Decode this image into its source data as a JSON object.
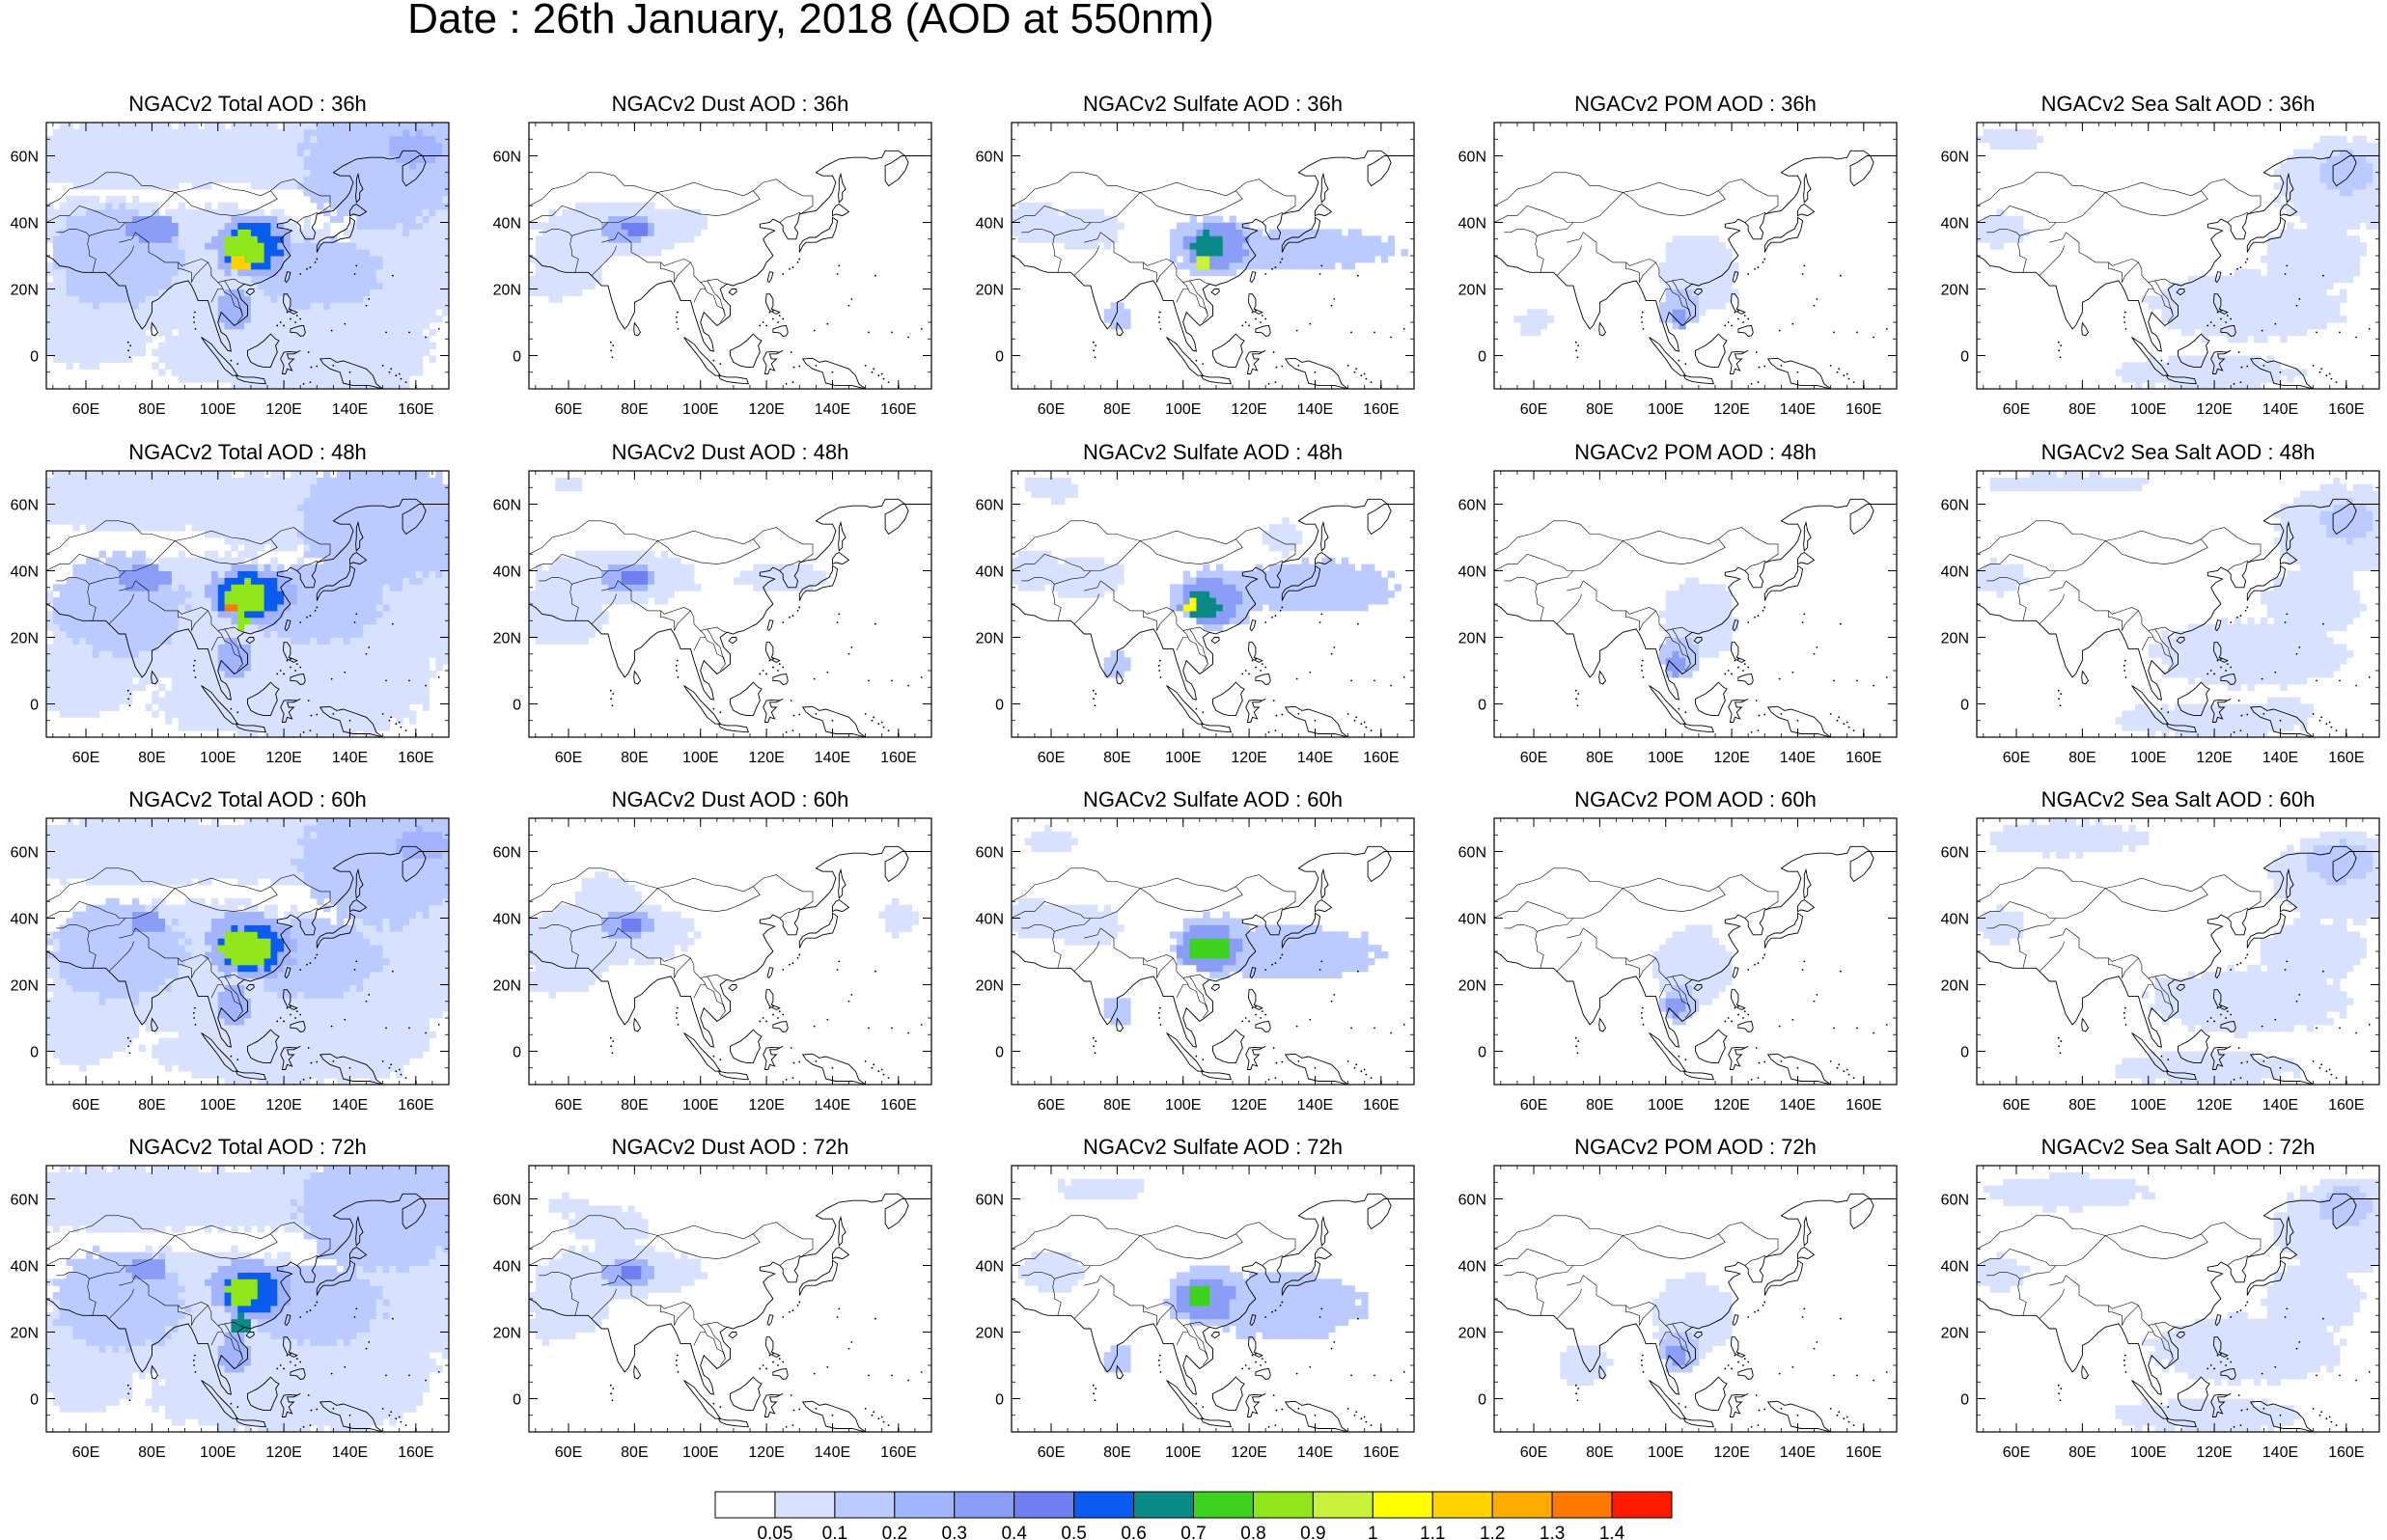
{
  "figure": {
    "title": "Date : 26th January, 2018 (AOD at 550nm)"
  },
  "map": {
    "lon_range": [
      48,
      170
    ],
    "lat_range": [
      -10,
      70
    ],
    "xticks": [
      {
        "lon": 60,
        "label": "60E"
      },
      {
        "lon": 80,
        "label": "80E"
      },
      {
        "lon": 100,
        "label": "100E"
      },
      {
        "lon": 120,
        "label": "120E"
      },
      {
        "lon": 140,
        "label": "140E"
      },
      {
        "lon": 160,
        "label": "160E"
      }
    ],
    "yticks": [
      {
        "lat": 60,
        "label": "60N"
      },
      {
        "lat": 40,
        "label": "40N"
      },
      {
        "lat": 20,
        "label": "20N"
      },
      {
        "lat": 0,
        "label": "0"
      }
    ]
  },
  "columns": [
    {
      "species": "total",
      "titles": [
        "NGACv2 Total AOD : 36h",
        "NGACv2 Total AOD : 48h",
        "NGACv2 Total AOD : 60h",
        "NGACv2 Total AOD : 72h"
      ]
    },
    {
      "species": "dust",
      "titles": [
        "NGACv2 Dust AOD : 36h",
        "NGACv2 Dust AOD : 48h",
        "NGACv2 Dust AOD : 60h",
        "NGACv2 Dust AOD : 72h"
      ]
    },
    {
      "species": "sulfate",
      "titles": [
        "NGACv2 Sulfate AOD : 36h",
        "NGACv2 Sulfate AOD : 48h",
        "NGACv2 Sulfate AOD : 60h",
        "NGACv2 Sulfate AOD : 72h"
      ]
    },
    {
      "species": "pom",
      "titles": [
        "NGACv2 POM AOD : 36h",
        "NGACv2 POM AOD : 48h",
        "NGACv2 POM AOD : 60h",
        "NGACv2 POM AOD : 72h"
      ]
    },
    {
      "species": "seasalt",
      "titles": [
        "NGACv2 Sea Salt AOD : 36h",
        "NGACv2 Sea Salt AOD : 48h",
        "NGACv2 Sea Salt AOD : 60h",
        "NGACv2 Sea Salt  AOD : 72h"
      ]
    }
  ],
  "colorbar": {
    "labels": [
      "0.05",
      "0.1",
      "0.2",
      "0.3",
      "0.4",
      "0.5",
      "0.6",
      "0.7",
      "0.8",
      "0.9",
      "1",
      "1.1",
      "1.2",
      "1.3",
      "1.4"
    ],
    "colors": [
      "#ffffff",
      "#d8e2ff",
      "#bccbff",
      "#a3b4ff",
      "#8a9df7",
      "#6f7fef",
      "#0a5cf0",
      "#0a8a86",
      "#3cd21e",
      "#8fe61a",
      "#c8f23c",
      "#ffff00",
      "#ffd200",
      "#ffaa00",
      "#ff7800",
      "#ff1a00"
    ]
  }
}
